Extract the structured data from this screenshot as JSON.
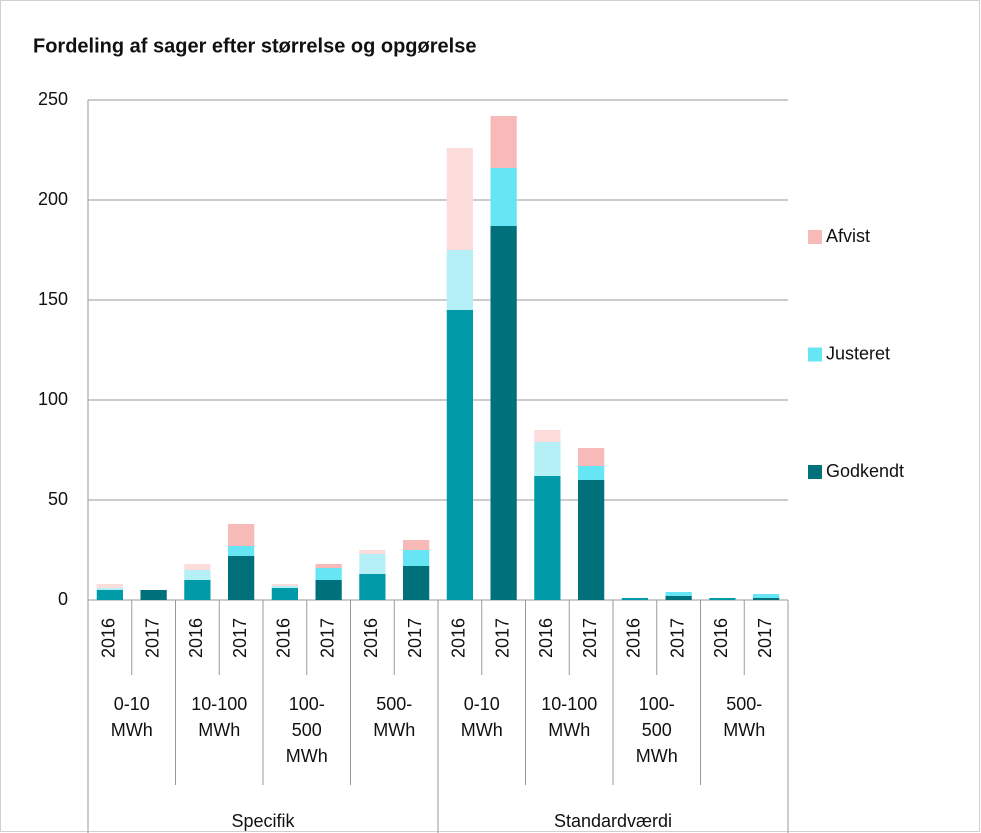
{
  "chart_data": {
    "type": "stacked_bar",
    "title": "Fordeling af sager efter størrelse og opgørelse",
    "categories": [
      "2016",
      "2017",
      "2016",
      "2017",
      "2016",
      "2017",
      "2016",
      "2017",
      "2016",
      "2017",
      "2016",
      "2017",
      "2016",
      "2017",
      "2016",
      "2017"
    ],
    "subgroups": [
      [
        "0-10",
        "MWh"
      ],
      [
        "10-100",
        "MWh"
      ],
      [
        "100-",
        "500",
        "MWh"
      ],
      [
        "500-",
        "MWh"
      ],
      [
        "0-10",
        "MWh"
      ],
      [
        "10-100",
        "MWh"
      ],
      [
        "100-",
        "500",
        "MWh"
      ],
      [
        "500-",
        "MWh"
      ]
    ],
    "groups": [
      "Specifik",
      "Standardværdi"
    ],
    "series": [
      {
        "name": "Godkendt",
        "color": "#00707a",
        "colors": [
          "#009aa8",
          "#00707a",
          "#009aa8",
          "#00707a",
          "#009aa8",
          "#00707a",
          "#009aa8",
          "#00707a",
          "#009aa8",
          "#00707a",
          "#009aa8",
          "#00707a",
          "#009aa8",
          "#00707a",
          "#009aa8",
          "#00707a"
        ],
        "values": [
          5,
          5,
          10,
          22,
          6,
          10,
          13,
          17,
          145,
          187,
          62,
          60,
          1,
          2,
          1,
          1
        ]
      },
      {
        "name": "Justeret",
        "color": "#66e6f4",
        "colors": [
          "#b5f0f6",
          "#66e6f4",
          "#b5f0f6",
          "#66e6f4",
          "#b5f0f6",
          "#66e6f4",
          "#b5f0f6",
          "#66e6f4",
          "#b5f0f6",
          "#66e6f4",
          "#b5f0f6",
          "#66e6f4",
          "#b5f0f6",
          "#66e6f4",
          "#b5f0f6",
          "#66e6f4"
        ],
        "values": [
          1,
          0,
          5,
          5,
          1,
          6,
          10,
          8,
          30,
          29,
          17,
          7,
          0,
          2,
          0,
          2
        ]
      },
      {
        "name": "Afvist",
        "color": "#f8b9b9",
        "colors": [
          "#fddcdc",
          "#f8b9b9",
          "#fddcdc",
          "#f8b9b9",
          "#fddcdc",
          "#f8b9b9",
          "#fddcdc",
          "#f8b9b9",
          "#fddcdc",
          "#f8b9b9",
          "#fddcdc",
          "#f8b9b9",
          "#fddcdc",
          "#f8b9b9",
          "#fddcdc",
          "#f8b9b9"
        ],
        "values": [
          2,
          0,
          3,
          11,
          1,
          2,
          2,
          5,
          51,
          26,
          6,
          9,
          0,
          0,
          0,
          0
        ]
      }
    ],
    "ylim": [
      0,
      250
    ],
    "yticks": [
      0,
      50,
      100,
      150,
      200,
      250
    ],
    "grid": true,
    "legend": "right"
  }
}
